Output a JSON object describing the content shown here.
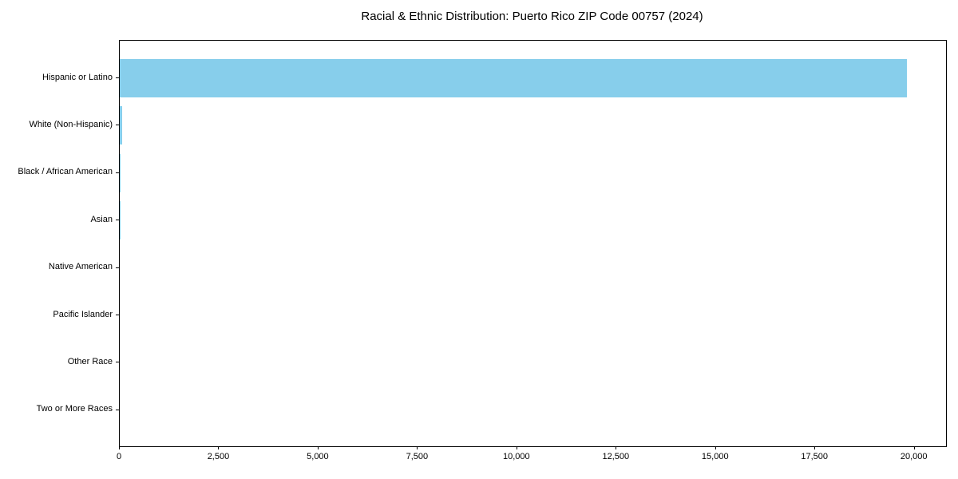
{
  "chart_data": {
    "type": "bar",
    "orientation": "horizontal",
    "title": "Racial & Ethnic Distribution: Puerto Rico ZIP Code 00757 (2024)",
    "categories": [
      "Hispanic or Latino",
      "White (Non-Hispanic)",
      "Black / African American",
      "Asian",
      "Native American",
      "Pacific Islander",
      "Other Race",
      "Two or More Races"
    ],
    "values": [
      19800,
      60,
      15,
      10,
      0,
      0,
      0,
      0
    ],
    "xlabel": "",
    "ylabel": "",
    "xlim": [
      0,
      20790
    ],
    "x_tick_values": [
      0,
      2500,
      5000,
      7500,
      10000,
      12500,
      15000,
      17500,
      20000
    ],
    "x_tick_labels": [
      "0",
      "2,500",
      "5,000",
      "7,500",
      "10,000",
      "12,500",
      "15,000",
      "17,500",
      "20,000"
    ],
    "bar_color": "#87CEEB",
    "axis_color": "#000000",
    "grid": false,
    "legend_position": "none"
  }
}
